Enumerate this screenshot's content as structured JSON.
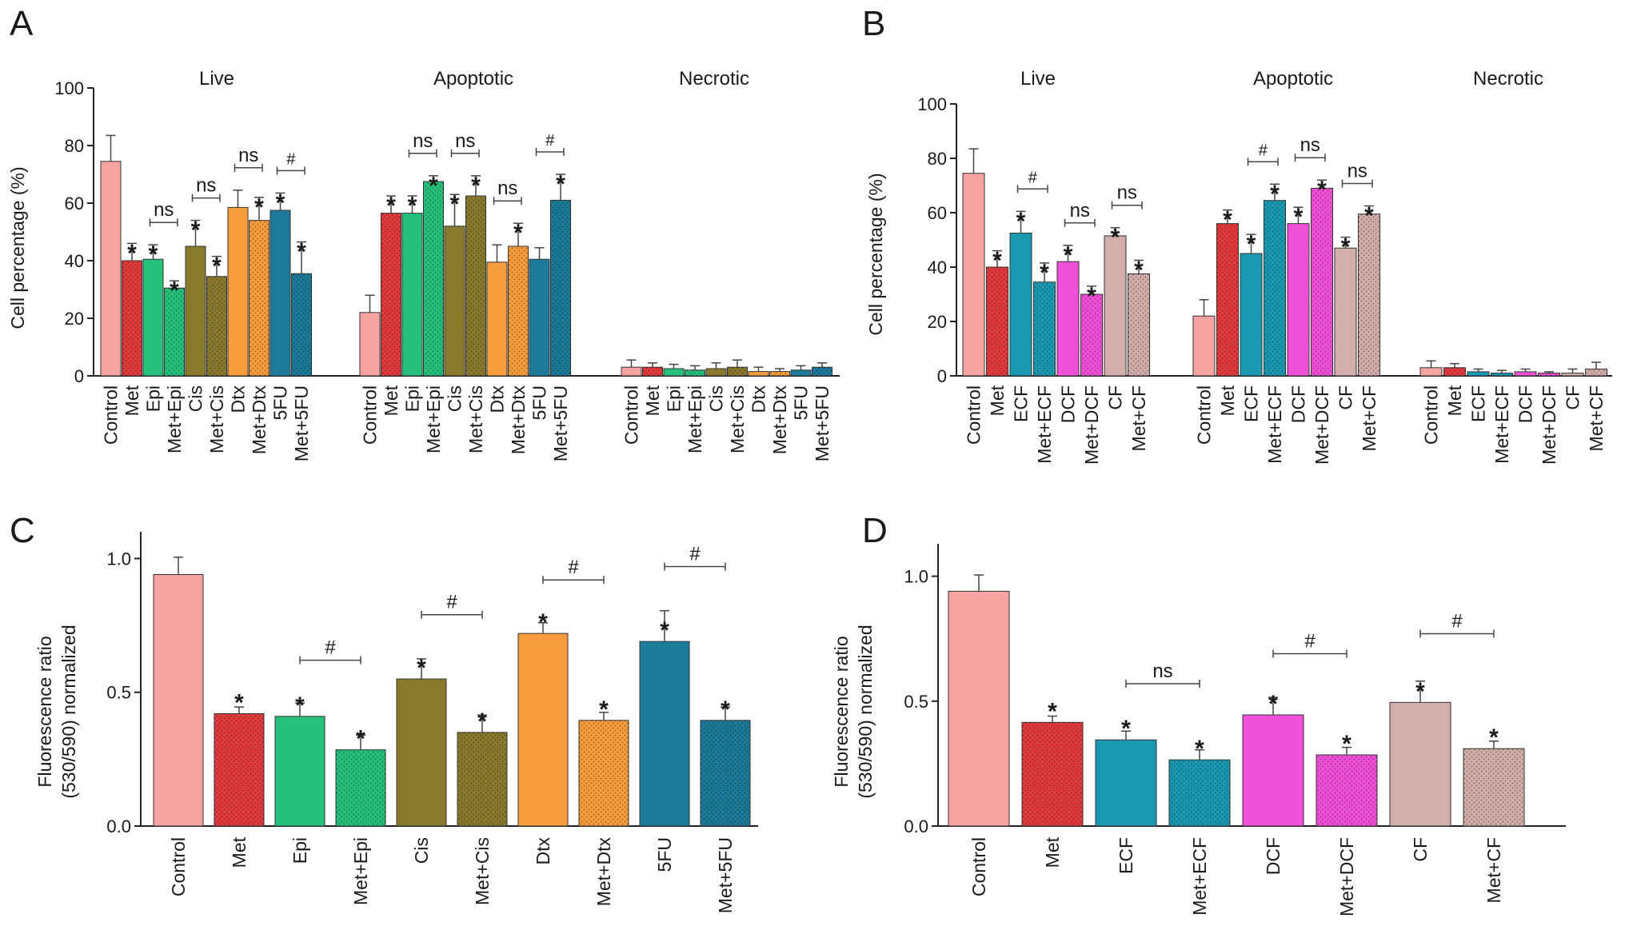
{
  "colors": {
    "Control": "#f6a3a1",
    "Met": "#e23a3c",
    "Epi": "#25c07a",
    "Cis": "#8a7a2e",
    "Dtx": "#f79d3b",
    "5FU": "#1c7a9a",
    "ECF": "#1a9ab2",
    "DCF": "#f04fd8",
    "CF": "#d3aeab",
    "axis": "#1a1a1a"
  },
  "chart_data": [
    {
      "panel": "A",
      "type": "bar",
      "ylabel": "Cell percentage (%)",
      "ylim": [
        0,
        100
      ],
      "yticks": [
        0,
        20,
        40,
        60,
        80,
        100
      ],
      "groups": [
        "Live",
        "Apoptotic",
        "Necrotic"
      ],
      "categories": [
        "Control",
        "Met",
        "Epi",
        "Met+Epi",
        "Cis",
        "Met+Cis",
        "Dtx",
        "Met+Dtx",
        "5FU",
        "Met+5FU"
      ],
      "series": [
        {
          "name": "Live",
          "values": [
            74.5,
            40,
            40.5,
            30.5,
            45,
            34.5,
            58.5,
            54,
            57.5,
            35.5
          ],
          "errors": [
            9,
            6,
            5,
            2.5,
            9,
            7,
            6,
            8,
            6,
            11
          ],
          "stars": [
            "",
            "*",
            "*",
            "*",
            "*",
            "*",
            "",
            "*",
            "*",
            "*"
          ]
        },
        {
          "name": "Apoptotic",
          "values": [
            22,
            56.5,
            56.5,
            67.5,
            52,
            62.5,
            39.5,
            45,
            40.5,
            61
          ],
          "errors": [
            6,
            6,
            6,
            2,
            11,
            7,
            6,
            8,
            4,
            9
          ],
          "stars": [
            "",
            "*",
            "*",
            "*",
            "*",
            "*",
            "",
            "*",
            "",
            "*"
          ]
        },
        {
          "name": "Necrotic",
          "values": [
            3,
            3,
            2.5,
            2,
            2.5,
            3,
            1.5,
            1.5,
            2,
            3
          ],
          "errors": [
            2.5,
            1.5,
            1.5,
            1.5,
            2,
            2.5,
            1.5,
            1,
            1.5,
            1.5
          ],
          "stars": [
            "",
            "",
            "",
            "",
            "",
            "",
            "",
            "",
            "",
            ""
          ]
        }
      ],
      "annotations": [
        {
          "group": 0,
          "from": 2,
          "to": 3,
          "label": "ns"
        },
        {
          "group": 0,
          "from": 4,
          "to": 5,
          "label": "ns"
        },
        {
          "group": 0,
          "from": 6,
          "to": 7,
          "label": "ns"
        },
        {
          "group": 0,
          "from": 8,
          "to": 9,
          "label": "#"
        },
        {
          "group": 1,
          "from": 2,
          "to": 3,
          "label": "ns"
        },
        {
          "group": 1,
          "from": 4,
          "to": 5,
          "label": "ns"
        },
        {
          "group": 1,
          "from": 6,
          "to": 7,
          "label": "ns"
        },
        {
          "group": 1,
          "from": 8,
          "to": 9,
          "label": "#"
        }
      ]
    },
    {
      "panel": "B",
      "type": "bar",
      "ylabel": "Cell percentage (%)",
      "ylim": [
        0,
        100
      ],
      "yticks": [
        0,
        20,
        40,
        60,
        80,
        100
      ],
      "groups": [
        "Live",
        "Apoptotic",
        "Necrotic"
      ],
      "categories": [
        "Control",
        "Met",
        "ECF",
        "Met+ECF",
        "DCF",
        "Met+DCF",
        "CF",
        "Met+CF"
      ],
      "series": [
        {
          "name": "Live",
          "values": [
            74.5,
            40,
            52.5,
            34.5,
            42,
            30,
            51.5,
            37.5
          ],
          "errors": [
            9,
            6,
            8,
            7,
            6,
            3,
            3,
            5
          ],
          "stars": [
            "",
            "*",
            "*",
            "*",
            "*",
            "*",
            "*",
            "*"
          ]
        },
        {
          "name": "Apoptotic",
          "values": [
            22,
            56,
            45,
            64.5,
            56,
            69,
            47,
            59.5
          ],
          "errors": [
            6,
            5,
            7,
            6,
            6,
            3,
            4,
            3
          ],
          "stars": [
            "",
            "*",
            "*",
            "*",
            "*",
            "*",
            "*",
            "*"
          ]
        },
        {
          "name": "Necrotic",
          "values": [
            3,
            3,
            1.5,
            1,
            1.5,
            1,
            1,
            2.5
          ],
          "errors": [
            2.5,
            1.5,
            1,
            1,
            1,
            0.5,
            1.5,
            2.5
          ],
          "stars": [
            "",
            "",
            "",
            "",
            "",
            "",
            "",
            ""
          ]
        }
      ],
      "annotations": [
        {
          "group": 0,
          "from": 2,
          "to": 3,
          "label": "#"
        },
        {
          "group": 0,
          "from": 4,
          "to": 5,
          "label": "ns"
        },
        {
          "group": 0,
          "from": 6,
          "to": 7,
          "label": "ns"
        },
        {
          "group": 1,
          "from": 2,
          "to": 3,
          "label": "#"
        },
        {
          "group": 1,
          "from": 4,
          "to": 5,
          "label": "ns"
        },
        {
          "group": 1,
          "from": 6,
          "to": 7,
          "label": "ns"
        }
      ]
    },
    {
      "panel": "C",
      "type": "bar",
      "ylabel": [
        "Fluorescence ratio",
        "(530/590) normalized"
      ],
      "ylim": [
        0,
        1.1
      ],
      "yticks": [
        0.0,
        0.5,
        1.0
      ],
      "ytick_labels": [
        "0.0",
        "0.5",
        "1.0"
      ],
      "categories": [
        "Control",
        "Met",
        "Epi",
        "Met+Epi",
        "Cis",
        "Met+Cis",
        "Dtx",
        "Met+Dtx",
        "5FU",
        "Met+5FU"
      ],
      "values": [
        0.94,
        0.42,
        0.41,
        0.285,
        0.55,
        0.35,
        0.72,
        0.395,
        0.69,
        0.395
      ],
      "errors": [
        0.065,
        0.025,
        0.05,
        0.055,
        0.075,
        0.065,
        0.04,
        0.03,
        0.115,
        0.05
      ],
      "stars": [
        "",
        "*",
        "*",
        "*",
        "*",
        "*",
        "*",
        "*",
        "*",
        "*"
      ],
      "annotations": [
        {
          "from": 2,
          "to": 3,
          "y": 0.62,
          "label": "#"
        },
        {
          "from": 4,
          "to": 5,
          "y": 0.79,
          "label": "#"
        },
        {
          "from": 6,
          "to": 7,
          "y": 0.92,
          "label": "#"
        },
        {
          "from": 8,
          "to": 9,
          "y": 0.97,
          "label": "#"
        }
      ]
    },
    {
      "panel": "D",
      "type": "bar",
      "ylabel": [
        "Fluorescence ratio",
        "(530/590) normalized"
      ],
      "ylim": [
        0,
        1.13
      ],
      "yticks": [
        0.0,
        0.5,
        1.0
      ],
      "ytick_labels": [
        "0.0",
        "0.5",
        "1.0"
      ],
      "categories": [
        "Control",
        "Met",
        "ECF",
        "Met+ECF",
        "DCF",
        "Met+DCF",
        "CF",
        "Met+CF"
      ],
      "values": [
        0.94,
        0.415,
        0.345,
        0.265,
        0.445,
        0.285,
        0.495,
        0.31
      ],
      "errors": [
        0.065,
        0.025,
        0.035,
        0.04,
        0.07,
        0.03,
        0.085,
        0.03
      ],
      "stars": [
        "",
        "*",
        "*",
        "*",
        "*",
        "*",
        "*",
        "*"
      ],
      "annotations": [
        {
          "from": 2,
          "to": 3,
          "y": 0.57,
          "label": "ns"
        },
        {
          "from": 4,
          "to": 5,
          "y": 0.69,
          "label": "#"
        },
        {
          "from": 6,
          "to": 7,
          "y": 0.77,
          "label": "#"
        }
      ]
    }
  ]
}
